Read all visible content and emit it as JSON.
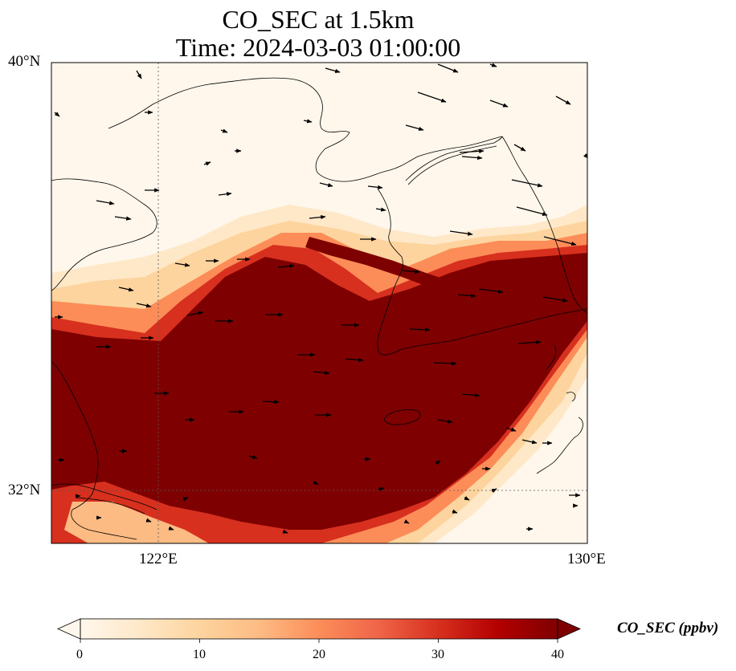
{
  "title": {
    "line1": "CO_SEC at 1.5km",
    "line2": "Time: 2024-03-03 01:00:00"
  },
  "axes": {
    "lat_ticks": [
      {
        "value": 40,
        "label": "40°N"
      },
      {
        "value": 32,
        "label": "32°N"
      }
    ],
    "lon_ticks": [
      {
        "value": 122,
        "label": "122°E"
      },
      {
        "value": 130,
        "label": "130°E"
      }
    ],
    "lon_range": [
      120,
      130
    ],
    "lat_range": [
      31,
      40
    ],
    "gridlines": "dotted"
  },
  "colorbar": {
    "label": "CO_SEC (ppbv)",
    "ticks": [
      "0",
      "10",
      "20",
      "30",
      "40"
    ],
    "range": [
      0,
      40
    ],
    "extend": "both",
    "colormap": [
      "#fff7ec",
      "#fee8c8",
      "#fdd49e",
      "#fdbb84",
      "#fc8d59",
      "#ef6548",
      "#d7301f",
      "#b30000",
      "#7f0000"
    ]
  },
  "field": {
    "variable": "CO_SEC",
    "units": "ppbv",
    "level": "1.5km",
    "plume": "Dense plume (>= 40 ppbv) stretching from the western edge near 32-35°N to the eastern edge near 33-37°N, bordered by orange-red transition zones; a secondary streak near 36.5°N, 125-127°E"
  },
  "wind": {
    "description": "Wind vectors mostly pointing east to east-southeast, stronger in the north-east of the domain"
  }
}
